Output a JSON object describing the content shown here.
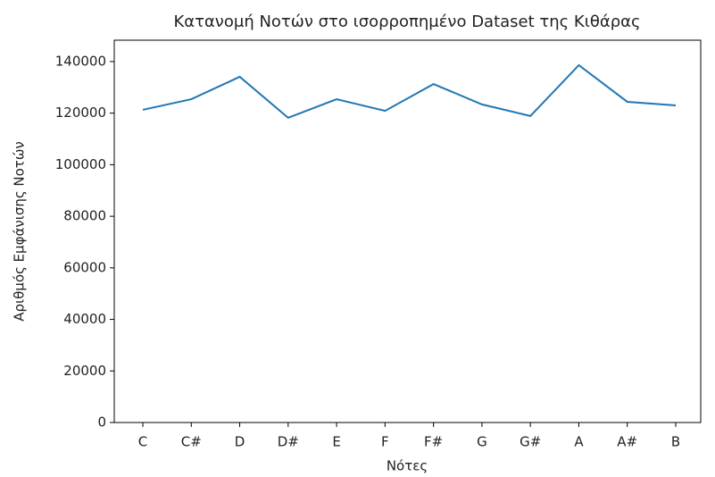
{
  "chart_data": {
    "type": "line",
    "title": "Κατανομή Νοτών στο ισορροπημένο Dataset της Κιθάρας",
    "x_label": "Νότες",
    "y_label": "Αριθμός Εμφάνισης Νοτών",
    "categories": [
      "C",
      "C#",
      "D",
      "D#",
      "E",
      "F",
      "F#",
      "G",
      "G#",
      "A",
      "A#",
      "B"
    ],
    "series": [
      {
        "name": null,
        "color": "#1f77b4",
        "values": [
          121300,
          125400,
          134100,
          118200,
          125400,
          120900,
          131300,
          123400,
          118900,
          138600,
          124400,
          123000
        ]
      }
    ],
    "ylim": [
      0,
      148300
    ],
    "yticks": [
      0,
      20000,
      40000,
      60000,
      80000,
      100000,
      120000,
      140000
    ],
    "grid": false
  }
}
